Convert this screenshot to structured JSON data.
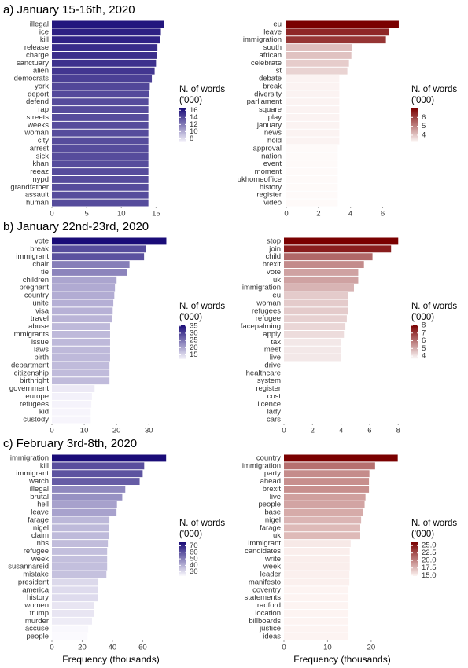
{
  "chart_data": [
    {
      "type": "barh",
      "title": "a) January 15-16th, 2020",
      "legend_title": [
        "N. of words",
        "('000)"
      ],
      "categories": [
        "illegal",
        "ice",
        "kill",
        "release",
        "charge",
        "sanctuary",
        "alien",
        "democrats",
        "york",
        "deport",
        "defend",
        "rap",
        "streets",
        "weeks",
        "woman",
        "city",
        "arrest",
        "sick",
        "khan",
        "reeaz",
        "nypd",
        "grandfather",
        "assault",
        "human"
      ],
      "values": [
        16.1,
        15.7,
        15.6,
        15.2,
        15.1,
        15.0,
        14.8,
        14.4,
        14.1,
        14.0,
        13.9,
        13.9,
        13.9,
        13.9,
        13.9,
        13.9,
        13.9,
        13.9,
        13.9,
        13.9,
        13.9,
        13.9,
        13.9,
        13.9
      ],
      "xlim": [
        0,
        17
      ],
      "xticks": [
        0,
        5,
        10,
        15
      ],
      "grid": false,
      "colors": [
        "#f7f5fc",
        "#1a0c78"
      ],
      "clim": [
        7,
        16.5
      ],
      "cticks": [
        8,
        10,
        12,
        14,
        16
      ]
    },
    {
      "type": "barh",
      "legend_title": [
        "N. of words",
        "('000)"
      ],
      "categories": [
        "eu",
        "leave",
        "immigration",
        "south",
        "african",
        "celebrate",
        "st",
        "debate",
        "break",
        "diversity",
        "parliament",
        "square",
        "play",
        "january",
        "news",
        "hold",
        "approval",
        "nation",
        "event",
        "moment",
        "ukhomeoffice",
        "history",
        "register",
        "video"
      ],
      "values": [
        7.0,
        6.4,
        6.2,
        4.1,
        4.05,
        3.9,
        3.8,
        3.3,
        3.3,
        3.3,
        3.3,
        3.3,
        3.3,
        3.3,
        3.3,
        3.3,
        3.2,
        3.2,
        3.2,
        3.2,
        3.2,
        3.2,
        3.2,
        3.2
      ],
      "xlim": [
        0,
        7.1
      ],
      "xticks": [
        0,
        2,
        4,
        6
      ],
      "grid": false,
      "colors": [
        "#fefaf9",
        "#7a0000"
      ],
      "clim": [
        3.2,
        7.0
      ],
      "cticks": [
        4,
        5,
        6
      ]
    },
    {
      "type": "barh",
      "title": "b) January 22nd-23rd, 2020",
      "legend_title": [
        "N. of words",
        "('000)"
      ],
      "categories": [
        "vote",
        "break",
        "immigrant",
        "chair",
        "tie",
        "children",
        "pregnant",
        "country",
        "unite",
        "visa",
        "travel",
        "abuse",
        "immigrants",
        "issue",
        "laws",
        "birth",
        "department",
        "citizenship",
        "birthright",
        "government",
        "europe",
        "refugees",
        "kid",
        "custody"
      ],
      "values": [
        35.4,
        29,
        28.5,
        24,
        23.3,
        20,
        19.5,
        19.3,
        19,
        18.8,
        18.5,
        18,
        18,
        18,
        18,
        18,
        17.8,
        17.8,
        17.8,
        13.2,
        12.4,
        12.2,
        12,
        12
      ],
      "xlim": [
        0,
        36.5
      ],
      "xticks": [
        0,
        10,
        20,
        30
      ],
      "grid": false,
      "colors": [
        "#f7f5fc",
        "#1a0c78"
      ],
      "clim": [
        12,
        35.4
      ],
      "cticks": [
        15,
        20,
        25,
        30,
        35
      ]
    },
    {
      "type": "barh",
      "legend_title": [
        "N. of words",
        "('000)"
      ],
      "categories": [
        "stop",
        "join",
        "child",
        "brexit",
        "vote",
        "uk",
        "immigration",
        "eu",
        "woman",
        "refugees",
        "refugee",
        "facepalming",
        "apply",
        "tax",
        "meet",
        "live",
        "drive",
        "healthcare",
        "system",
        "register",
        "cost",
        "licence",
        "lady",
        "cars"
      ],
      "values": [
        8.0,
        7.5,
        6.2,
        5.6,
        5.2,
        5.2,
        4.9,
        4.5,
        4.5,
        4.5,
        4.4,
        4.3,
        4.2,
        4.0,
        4.0,
        4.0,
        3.6,
        3.6,
        3.6,
        3.6,
        3.6,
        3.6,
        3.6,
        3.6
      ],
      "xlim": [
        0,
        8.15
      ],
      "xticks": [
        0,
        2,
        4,
        6,
        8
      ],
      "grid": false,
      "colors": [
        "#ffffff",
        "#7a0000"
      ],
      "clim": [
        3.6,
        8.0
      ],
      "cticks": [
        4,
        5,
        6,
        7,
        8
      ]
    },
    {
      "type": "barh",
      "title": "c) February 3rd-8th, 2020",
      "legend_title": [
        "N. of words",
        "('000)"
      ],
      "xlabel": "Frequency (thousands)",
      "categories": [
        "immigration",
        "kill",
        "immigrant",
        "watch",
        "illegal",
        "brutal",
        "hell",
        "leave",
        "farage",
        "nigel",
        "claim",
        "nhs",
        "refugee",
        "week",
        "susannareid",
        "mistake",
        "president",
        "america",
        "history",
        "women",
        "trump",
        "murder",
        "accuse",
        "people"
      ],
      "values": [
        75.5,
        61,
        60,
        58,
        48.5,
        46.5,
        43,
        42.7,
        38,
        37.5,
        37.5,
        37,
        36.5,
        36.5,
        36.5,
        36,
        30.7,
        30.2,
        30.2,
        28,
        28,
        26.5,
        24,
        23.5
      ],
      "xlim": [
        0,
        78
      ],
      "xticks": [
        0,
        20,
        40,
        60
      ],
      "grid": false,
      "colors": [
        "#fbfafe",
        "#1a0c78"
      ],
      "clim": [
        23.5,
        75.5
      ],
      "cticks": [
        30,
        40,
        50,
        60,
        70
      ]
    },
    {
      "type": "barh",
      "legend_title": [
        "N. of words",
        "('000)"
      ],
      "xlabel": "Frequency (thousands)",
      "categories": [
        "country",
        "immigration",
        "party",
        "ahead",
        "brexit",
        "live",
        "people",
        "base",
        "nigel",
        "farage",
        "uk",
        "immigrant",
        "candidates",
        "write",
        "week",
        "leader",
        "manifesto",
        "coventry",
        "statements",
        "radford",
        "location",
        "billboards",
        "justice",
        "ideas"
      ],
      "values": [
        26.1,
        20.9,
        19.6,
        19.5,
        19.5,
        18.7,
        18.5,
        18.2,
        17.7,
        17.5,
        17.5,
        15.3,
        15.1,
        15.1,
        15.1,
        15.0,
        15.0,
        14.8,
        14.8,
        14.8,
        14.8,
        14.8,
        14.8,
        14.8
      ],
      "xlim": [
        0,
        26.7
      ],
      "xticks": [
        0,
        10,
        20
      ],
      "grid": false,
      "colors": [
        "#fdf4f2",
        "#7a0000"
      ],
      "clim": [
        14.8,
        26.1
      ],
      "cticks": [
        {
          "value": 15,
          "label": "15.0"
        },
        {
          "value": 17.5,
          "label": "17.5"
        },
        {
          "value": 20,
          "label": "20.0"
        },
        {
          "value": 22.5,
          "label": "22.5"
        },
        {
          "value": 25,
          "label": "25.0"
        }
      ]
    }
  ]
}
